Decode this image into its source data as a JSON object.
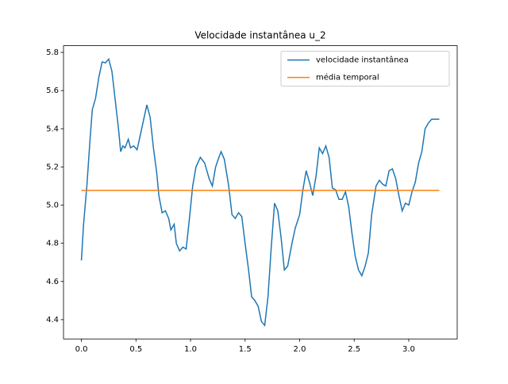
{
  "chart_data": {
    "type": "line",
    "title": "Velocidade instantânea u_2",
    "series": [
      {
        "name": "velocidade instantânea",
        "color": "#1f77b4",
        "x": [
          0.0,
          0.02,
          0.05,
          0.08,
          0.1,
          0.13,
          0.16,
          0.19,
          0.22,
          0.25,
          0.28,
          0.31,
          0.34,
          0.36,
          0.38,
          0.4,
          0.43,
          0.45,
          0.48,
          0.51,
          0.53,
          0.56,
          0.6,
          0.63,
          0.66,
          0.69,
          0.71,
          0.74,
          0.77,
          0.8,
          0.82,
          0.85,
          0.87,
          0.9,
          0.93,
          0.96,
          0.99,
          1.02,
          1.05,
          1.09,
          1.13,
          1.17,
          1.2,
          1.23,
          1.26,
          1.28,
          1.31,
          1.35,
          1.38,
          1.41,
          1.44,
          1.47,
          1.5,
          1.53,
          1.56,
          1.59,
          1.62,
          1.65,
          1.68,
          1.71,
          1.74,
          1.77,
          1.8,
          1.83,
          1.86,
          1.89,
          1.93,
          1.96,
          2.0,
          2.03,
          2.06,
          2.09,
          2.12,
          2.15,
          2.18,
          2.21,
          2.24,
          2.27,
          2.3,
          2.33,
          2.36,
          2.39,
          2.42,
          2.45,
          2.48,
          2.51,
          2.54,
          2.57,
          2.6,
          2.63,
          2.66,
          2.7,
          2.73,
          2.76,
          2.79,
          2.82,
          2.85,
          2.88,
          2.91,
          2.94,
          2.97,
          3.0,
          3.03,
          3.06,
          3.09,
          3.12,
          3.15,
          3.18,
          3.21,
          3.24,
          3.28
        ],
        "values": [
          4.71,
          4.9,
          5.1,
          5.35,
          5.5,
          5.56,
          5.67,
          5.75,
          5.745,
          5.765,
          5.7,
          5.55,
          5.4,
          5.28,
          5.31,
          5.3,
          5.345,
          5.3,
          5.31,
          5.29,
          5.34,
          5.42,
          5.525,
          5.46,
          5.3,
          5.17,
          5.05,
          4.96,
          4.97,
          4.93,
          4.87,
          4.9,
          4.8,
          4.76,
          4.78,
          4.77,
          4.93,
          5.1,
          5.2,
          5.25,
          5.22,
          5.14,
          5.1,
          5.2,
          5.25,
          5.28,
          5.24,
          5.1,
          4.95,
          4.93,
          4.96,
          4.94,
          4.8,
          4.67,
          4.52,
          4.5,
          4.47,
          4.39,
          4.37,
          4.52,
          4.78,
          5.01,
          4.97,
          4.83,
          4.66,
          4.68,
          4.8,
          4.88,
          4.95,
          5.08,
          5.18,
          5.12,
          5.05,
          5.15,
          5.3,
          5.27,
          5.31,
          5.25,
          5.09,
          5.08,
          5.03,
          5.03,
          5.07,
          4.99,
          4.85,
          4.73,
          4.66,
          4.63,
          4.68,
          4.75,
          4.95,
          5.1,
          5.13,
          5.11,
          5.1,
          5.18,
          5.19,
          5.14,
          5.05,
          4.97,
          5.01,
          5.0,
          5.07,
          5.12,
          5.22,
          5.28,
          5.4,
          5.43,
          5.45,
          5.45,
          5.45
        ]
      },
      {
        "name": "média temporal",
        "color": "#ff7f0e",
        "x": [
          0,
          3.28
        ],
        "values": [
          5.077,
          5.077
        ]
      }
    ],
    "xlim": [
      -0.164,
      3.444
    ],
    "ylim": [
      4.299,
      5.835
    ],
    "xticks": [
      {
        "value": 0,
        "label": "0.0"
      },
      0.5,
      {
        "value": 1,
        "label": "1.0"
      },
      1.5,
      {
        "value": 2,
        "label": "2.0"
      },
      2.5,
      {
        "value": 3,
        "label": "3.0"
      }
    ],
    "yticks": [
      4.4,
      4.6,
      4.8,
      {
        "value": 5,
        "label": "5.0"
      },
      5.2,
      5.4,
      5.6,
      5.8
    ],
    "grid": false,
    "legend": "upper right"
  }
}
